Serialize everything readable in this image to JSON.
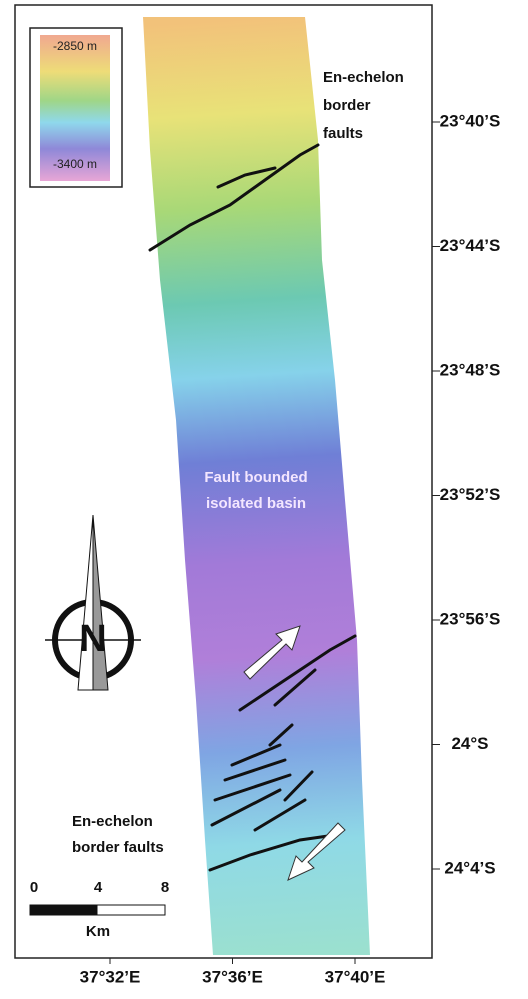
{
  "legend": {
    "top_label": "-2850 m",
    "bottom_label": "-3400 m"
  },
  "annotations": {
    "top_faults": [
      "En-echelon",
      "border",
      "faults"
    ],
    "basin": [
      "Fault bounded",
      "isolated basin"
    ],
    "bottom_faults": [
      "En-echelon",
      "border faults"
    ]
  },
  "latitude_labels": [
    "23°40’S",
    "23°44’S",
    "23°48’S",
    "23°52’S",
    "23°56’S",
    "24°S",
    "24°4’S"
  ],
  "longitude_labels": [
    "37°32’E",
    "37°36’E",
    "37°40’E"
  ],
  "scale_bar": {
    "labels": [
      "0",
      "4",
      "8"
    ],
    "unit": "Km"
  },
  "north_arrow": "N"
}
